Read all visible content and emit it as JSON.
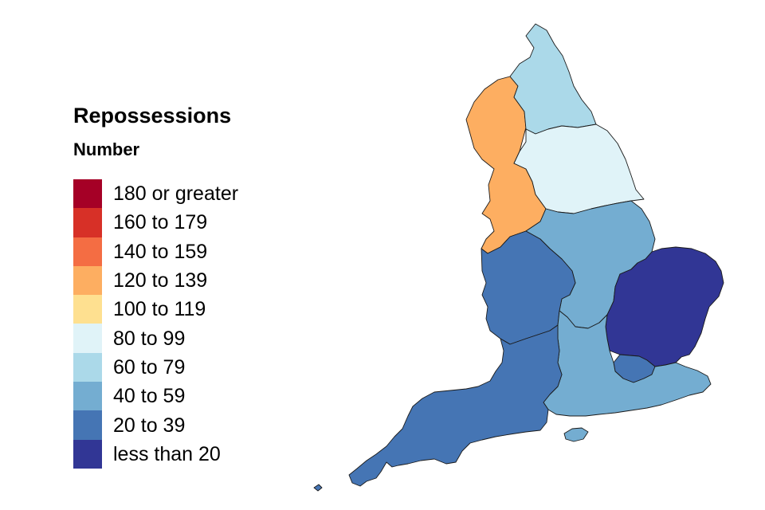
{
  "legend": {
    "title": "Repossessions",
    "subtitle": "Number",
    "items": [
      {
        "label": "180 or greater",
        "color": "#a50026"
      },
      {
        "label": "160 to 179",
        "color": "#d73027"
      },
      {
        "label": "140 to 159",
        "color": "#f46d43"
      },
      {
        "label": "120 to 139",
        "color": "#fdae61"
      },
      {
        "label": "100 to 119",
        "color": "#fee090"
      },
      {
        "label": "80 to 99",
        "color": "#e0f3f8"
      },
      {
        "label": "60 to 79",
        "color": "#abd9e9"
      },
      {
        "label": "40 to 59",
        "color": "#74add1"
      },
      {
        "label": "20 to 39",
        "color": "#4575b4"
      },
      {
        "label": "less than 20",
        "color": "#313695"
      }
    ]
  },
  "regions": [
    {
      "id": "north-east",
      "band": "60 to 79",
      "color": "#abd9e9"
    },
    {
      "id": "north-west",
      "band": "120 to 139",
      "color": "#fdae61"
    },
    {
      "id": "yorkshire-and-the-humber",
      "band": "80 to 99",
      "color": "#e0f3f8"
    },
    {
      "id": "east-midlands",
      "band": "40 to 59",
      "color": "#74add1"
    },
    {
      "id": "west-midlands",
      "band": "20 to 39",
      "color": "#4575b4"
    },
    {
      "id": "east-of-england",
      "band": "less than 20",
      "color": "#313695"
    },
    {
      "id": "london",
      "band": "20 to 39",
      "color": "#4575b4"
    },
    {
      "id": "south-east",
      "band": "40 to 59",
      "color": "#74add1"
    },
    {
      "id": "south-west",
      "band": "20 to 39",
      "color": "#4575b4"
    }
  ]
}
